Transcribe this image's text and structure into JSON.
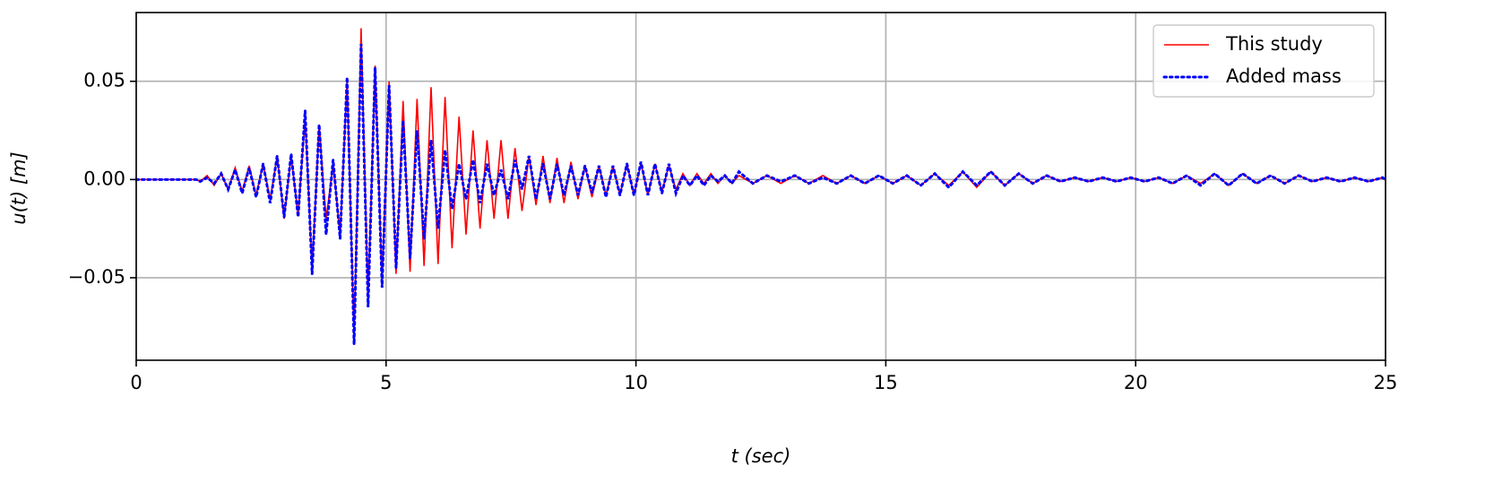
{
  "chart_data": {
    "type": "line",
    "xlabel": "t (sec)",
    "ylabel": "u(t) [m]",
    "xlim": [
      0,
      25
    ],
    "ylim": [
      -0.092,
      0.085
    ],
    "xticks": [
      0,
      5,
      10,
      15,
      20,
      25
    ],
    "yticks": [
      {
        "value": -0.05,
        "label": "−0.05"
      },
      {
        "value": 0,
        "label": "0.00"
      },
      0.05
    ],
    "grid": true,
    "legend": "upper right",
    "x": [
      0,
      1.2,
      1.28,
      1.42,
      1.56,
      1.7,
      1.84,
      1.98,
      2.12,
      2.26,
      2.4,
      2.54,
      2.68,
      2.82,
      2.96,
      3.1,
      3.24,
      3.38,
      3.52,
      3.66,
      3.8,
      3.94,
      4.08,
      4.22,
      4.36,
      4.5,
      4.64,
      4.78,
      4.92,
      5.06,
      5.2,
      5.34,
      5.48,
      5.62,
      5.76,
      5.9,
      6.04,
      6.18,
      6.32,
      6.46,
      6.6,
      6.74,
      6.88,
      7.02,
      7.16,
      7.3,
      7.44,
      7.58,
      7.72,
      7.86,
      8.0,
      8.14,
      8.28,
      8.42,
      8.56,
      8.7,
      8.84,
      8.98,
      9.12,
      9.26,
      9.4,
      9.54,
      9.68,
      9.82,
      9.96,
      10.1,
      10.24,
      10.38,
      10.52,
      10.66,
      10.8,
      10.94,
      11.08,
      11.22,
      11.36,
      11.5,
      11.64,
      11.78,
      11.92,
      12.06,
      12.34,
      12.62,
      12.9,
      13.18,
      13.46,
      13.74,
      14.02,
      14.3,
      14.58,
      14.86,
      15.14,
      15.42,
      15.7,
      15.98,
      16.26,
      16.54,
      16.82,
      17.1,
      17.38,
      17.66,
      17.94,
      18.22,
      18.5,
      18.78,
      19.06,
      19.34,
      19.62,
      19.9,
      20.18,
      20.46,
      20.74,
      21.02,
      21.3,
      21.58,
      21.86,
      22.14,
      22.42,
      22.7,
      22.98,
      23.26,
      23.54,
      23.82,
      24.1,
      24.38,
      24.66,
      24.94,
      25
    ],
    "series": [
      {
        "name": "This study",
        "color": "#ff0000",
        "style": "solid",
        "values": [
          0,
          0,
          -0.001,
          0.002,
          -0.003,
          0.003,
          -0.005,
          0.006,
          -0.006,
          0.007,
          -0.008,
          0.008,
          -0.01,
          0.012,
          -0.02,
          0.012,
          -0.018,
          0.031,
          -0.045,
          0.028,
          -0.02,
          0.008,
          -0.028,
          0.05,
          -0.08,
          0.077,
          -0.06,
          0.058,
          -0.053,
          0.05,
          -0.048,
          0.04,
          -0.047,
          0.041,
          -0.044,
          0.047,
          -0.043,
          0.042,
          -0.035,
          0.032,
          -0.028,
          0.025,
          -0.025,
          0.02,
          -0.02,
          0.02,
          -0.02,
          0.016,
          -0.016,
          0.012,
          -0.013,
          0.012,
          -0.012,
          0.011,
          -0.012,
          0.009,
          -0.01,
          0.007,
          -0.009,
          0.007,
          -0.008,
          0.007,
          -0.008,
          0.008,
          -0.008,
          0.008,
          -0.008,
          0.008,
          -0.006,
          0.007,
          -0.005,
          0.003,
          -0.003,
          0.003,
          -0.002,
          0.003,
          -0.002,
          0.002,
          -0.002,
          0.002,
          -0.002,
          0.002,
          -0.002,
          0.002,
          -0.002,
          0.002,
          -0.002,
          0.002,
          -0.002,
          0.002,
          -0.002,
          0.002,
          -0.003,
          0.003,
          -0.003,
          0.004,
          -0.004,
          0.004,
          -0.003,
          0.003,
          -0.002,
          0.002,
          -0.001,
          0.001,
          -0.001,
          0.001,
          -0.001,
          0.001,
          -0.001,
          0.001,
          -0.002,
          0.002,
          -0.002,
          0.003,
          -0.003,
          0.003,
          -0.002,
          0.002,
          -0.002,
          0.002,
          -0.001,
          0.001,
          -0.001,
          0.001,
          -0.001,
          0.001,
          0
        ]
      },
      {
        "name": "Added mass",
        "color": "#0000ff",
        "style": "dotted",
        "values": [
          0,
          0,
          -0.001,
          0.001,
          -0.002,
          0.003,
          -0.005,
          0.005,
          -0.007,
          0.006,
          -0.009,
          0.008,
          -0.012,
          0.012,
          -0.019,
          0.013,
          -0.019,
          0.035,
          -0.048,
          0.028,
          -0.028,
          0.01,
          -0.03,
          0.052,
          -0.084,
          0.069,
          -0.065,
          0.057,
          -0.055,
          0.048,
          -0.045,
          0.03,
          -0.04,
          0.025,
          -0.03,
          0.02,
          -0.025,
          0.015,
          -0.015,
          0.008,
          -0.01,
          0.01,
          -0.012,
          0.008,
          -0.008,
          0.005,
          -0.01,
          0.01,
          -0.005,
          0.012,
          -0.01,
          0.008,
          -0.01,
          0.008,
          -0.008,
          0.007,
          -0.008,
          0.007,
          -0.007,
          0.007,
          -0.009,
          0.007,
          -0.008,
          0.008,
          -0.008,
          0.009,
          -0.008,
          0.008,
          -0.007,
          0.008,
          -0.007,
          0.002,
          -0.003,
          0.002,
          -0.003,
          0.002,
          -0.001,
          0.002,
          -0.002,
          0.004,
          -0.002,
          0.002,
          -0.001,
          0.002,
          -0.002,
          0.001,
          -0.002,
          0.002,
          -0.002,
          0.002,
          -0.002,
          0.002,
          -0.003,
          0.003,
          -0.004,
          0.004,
          -0.003,
          0.004,
          -0.003,
          0.003,
          -0.002,
          0.002,
          -0.001,
          0.001,
          -0.001,
          0.001,
          -0.001,
          0.001,
          -0.001,
          0.001,
          -0.002,
          0.002,
          -0.003,
          0.003,
          -0.003,
          0.003,
          -0.002,
          0.002,
          -0.002,
          0.002,
          -0.001,
          0.001,
          -0.001,
          0.001,
          -0.001,
          0.001,
          0
        ]
      }
    ]
  }
}
